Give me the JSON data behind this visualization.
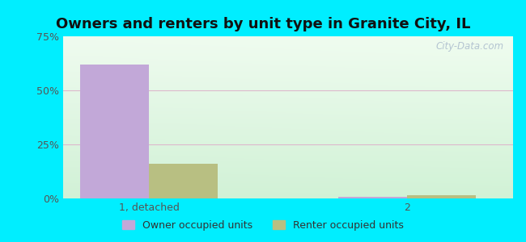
{
  "title": "Owners and renters by unit type in Granite City, IL",
  "categories": [
    "1, detached",
    "2"
  ],
  "owner_values": [
    62.0,
    0.8
  ],
  "renter_values": [
    16.0,
    1.5
  ],
  "owner_color": "#c2a8d8",
  "renter_color": "#b8bf82",
  "ylim": [
    0,
    75
  ],
  "yticks": [
    0,
    25,
    50,
    75
  ],
  "ytick_labels": [
    "0%",
    "25%",
    "50%",
    "75%"
  ],
  "bar_width": 0.28,
  "outer_bg": "#00eeff",
  "legend_owner": "Owner occupied units",
  "legend_renter": "Renter occupied units",
  "watermark": "City-Data.com",
  "grid_color": "#e8c8d8",
  "title_fontsize": 13,
  "tick_fontsize": 9
}
